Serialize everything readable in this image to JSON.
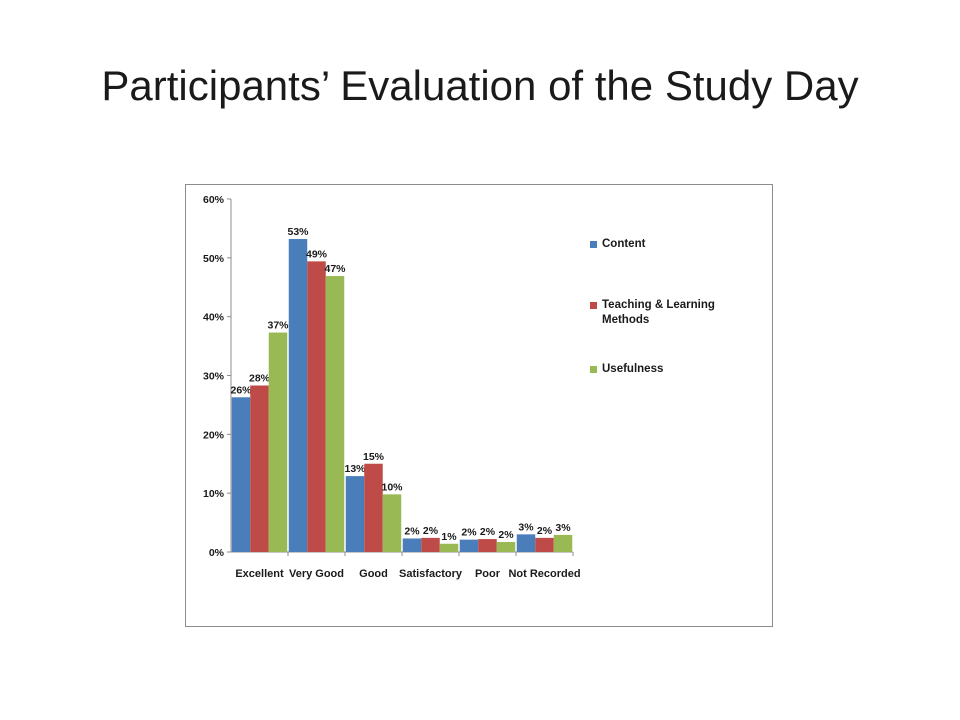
{
  "slide": {
    "title": "Participants’ Evaluation of the Study Day"
  },
  "chart_data": {
    "type": "bar",
    "categories": [
      "Excellent",
      "Very Good",
      "Good",
      "Satisfactory",
      "Poor",
      "Not Recorded"
    ],
    "series": [
      {
        "name": "Content",
        "color": "#4a7ebb",
        "values": [
          26.3,
          53.2,
          12.9,
          2.3,
          2.1,
          3.0
        ],
        "labels": [
          "26%",
          "53%",
          "13%",
          "2%",
          "2%",
          "3%"
        ]
      },
      {
        "name": "Teaching & Learning Methods",
        "color": "#be4b48",
        "values": [
          28.3,
          49.4,
          15.0,
          2.4,
          2.2,
          2.4
        ],
        "labels": [
          "28%",
          "49%",
          "15%",
          "2%",
          "2%",
          "2%"
        ]
      },
      {
        "name": "Usefulness",
        "color": "#98b954",
        "values": [
          37.3,
          46.9,
          9.8,
          1.4,
          1.7,
          2.9
        ],
        "labels": [
          "37%",
          "47%",
          "10%",
          "1%",
          "2%",
          "3%"
        ]
      }
    ],
    "yticks": [
      "0%",
      "10%",
      "20%",
      "30%",
      "40%",
      "50%",
      "60%"
    ],
    "ylim": [
      0,
      60
    ],
    "legend_position": "right",
    "grid": false
  }
}
